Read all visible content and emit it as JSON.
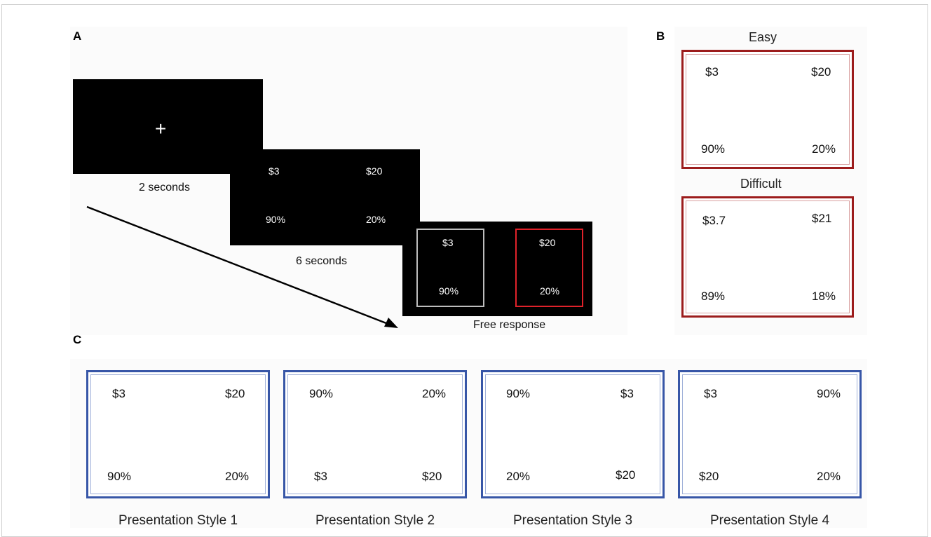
{
  "panels": {
    "a": {
      "letter": "A",
      "fixation_symbol": "+",
      "fixation_duration": "2 seconds",
      "screen2": {
        "top_left": "$3",
        "top_right": "$20",
        "bottom_left": "90%",
        "bottom_right": "20%"
      },
      "screen2_duration": "6 seconds",
      "screen3": {
        "left_option": {
          "amount": "$3",
          "probability": "90%"
        },
        "right_option": {
          "amount": "$20",
          "probability": "20%"
        }
      },
      "screen3_caption": "Free response"
    },
    "b": {
      "letter": "B",
      "easy": {
        "label": "Easy",
        "top_left": "$3",
        "top_right": "$20",
        "bottom_left": "90%",
        "bottom_right": "20%"
      },
      "difficult": {
        "label": "Difficult",
        "top_left": "$3.7",
        "top_right": "$21",
        "bottom_left": "89%",
        "bottom_right": "18%"
      }
    },
    "c": {
      "letter": "C",
      "styles": [
        {
          "label": "Presentation Style 1",
          "top_left": "$3",
          "top_right": "$20",
          "bottom_left": "90%",
          "bottom_right": "20%"
        },
        {
          "label": "Presentation Style 2",
          "top_left": "90%",
          "top_right": "20%",
          "bottom_left": "$3",
          "bottom_right": "$20"
        },
        {
          "label": "Presentation Style 3",
          "top_left": "90%",
          "top_right": "$3",
          "bottom_left": "20%",
          "bottom_right": "$20"
        },
        {
          "label": "Presentation Style 4",
          "top_left": "$3",
          "top_right": "90%",
          "bottom_left": "$20",
          "bottom_right": "20%"
        }
      ]
    }
  },
  "colors": {
    "screen_bg": "#000000",
    "selected_option_border": "#e0222a",
    "unselected_option_border": "#bdbdbd",
    "difficulty_card_border": "#9c1c1c",
    "style_card_border": "#3756a7"
  }
}
